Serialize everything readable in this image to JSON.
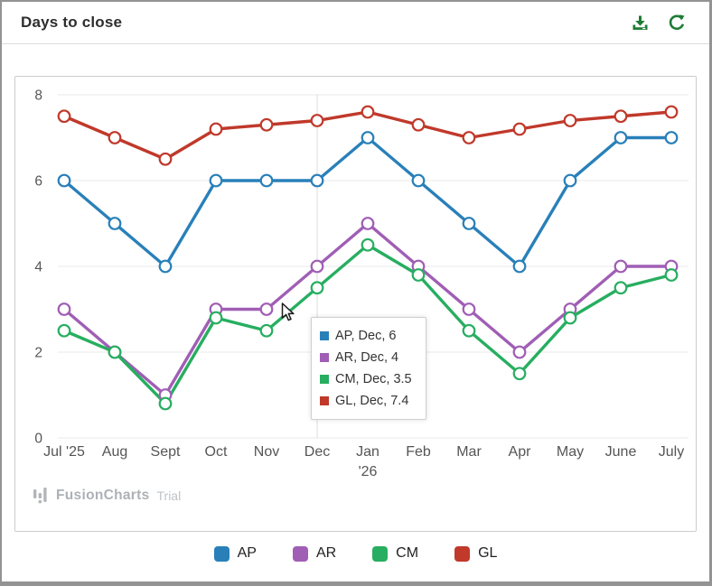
{
  "header": {
    "title": "Days to close",
    "icon_color": "#1d7c34"
  },
  "chart_data": {
    "type": "line",
    "title": "Days to close",
    "categories": [
      "Jul '25",
      "Aug",
      "Sept",
      "Oct",
      "Nov",
      "Dec",
      "Jan\n'26",
      "Feb",
      "Mar",
      "Apr",
      "May",
      "June",
      "July"
    ],
    "series": [
      {
        "name": "AP",
        "color": "#2980b9",
        "values": [
          6,
          5,
          4,
          6,
          6,
          6,
          7,
          6,
          5,
          4,
          6,
          7,
          7
        ]
      },
      {
        "name": "AR",
        "color": "#a05eb5",
        "values": [
          3,
          2,
          1,
          3,
          3,
          4,
          5,
          4,
          3,
          2,
          3,
          4,
          4
        ]
      },
      {
        "name": "CM",
        "color": "#27ae60",
        "values": [
          2.5,
          2,
          0.8,
          2.8,
          2.5,
          3.5,
          4.5,
          3.8,
          2.5,
          1.5,
          2.8,
          3.5,
          3.8
        ]
      },
      {
        "name": "GL",
        "color": "#c0392b",
        "values": [
          7.5,
          7,
          6.5,
          7.2,
          7.3,
          7.4,
          7.6,
          7.3,
          7,
          7.2,
          7.4,
          7.5,
          7.6
        ]
      }
    ],
    "ylim": [
      0,
      8
    ],
    "yticks": [
      0,
      2,
      4,
      6,
      8
    ],
    "grid": "horizontal",
    "gridline_color": "#e8e8e8",
    "axis_text_color": "#555555",
    "crosshair_index": 5,
    "legend_position": "bottom"
  },
  "tooltip": {
    "rows": [
      {
        "label": "AP, Dec, 6",
        "color": "#2980b9"
      },
      {
        "label": "AR, Dec, 4",
        "color": "#a05eb5"
      },
      {
        "label": "CM, Dec, 3.5",
        "color": "#27ae60"
      },
      {
        "label": "GL, Dec, 7.4",
        "color": "#c0392b"
      }
    ]
  },
  "legend": {
    "items": [
      {
        "label": "AP",
        "color": "#2980b9"
      },
      {
        "label": "AR",
        "color": "#a05eb5"
      },
      {
        "label": "CM",
        "color": "#27ae60"
      },
      {
        "label": "GL",
        "color": "#c0392b"
      }
    ]
  },
  "branding": {
    "name": "FusionCharts",
    "tag": "Trial"
  }
}
